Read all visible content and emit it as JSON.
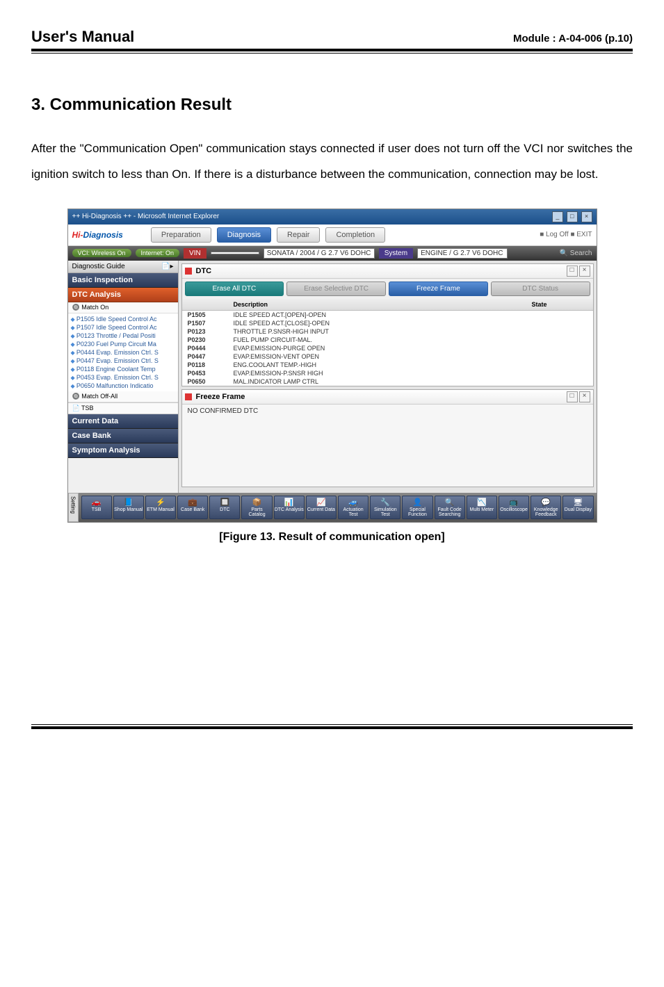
{
  "header": {
    "title": "User's Manual",
    "module": "Module : A-04-006 (p.10)"
  },
  "section": {
    "title": "3. Communication Result"
  },
  "body": "After the \"Communication Open\" communication stays connected if user does not turn off the VCI nor switches the ignition switch to less than On. If there is a disturbance between the communication, connection may be lost.",
  "caption": "[Figure 13. Result of communication open]",
  "window": {
    "title": "++ Hi-Diagnosis ++ - Microsoft Internet Explorer",
    "logo_hi": "Hi-",
    "logo_diag": "Diagnosis",
    "nav": {
      "prep": "Preparation",
      "diag": "Diagnosis",
      "repair": "Repair",
      "comp": "Completion"
    },
    "toplinks": "■ Log Off   ■ EXIT",
    "status": {
      "vci": "VCI: Wireless On",
      "net": "Internet: On"
    },
    "labels": {
      "vin": "VIN",
      "system": "System",
      "search": "🔍 Search"
    },
    "fields": {
      "vin": "",
      "model": "SONATA / 2004 / G 2.7 V6 DOHC",
      "system": "ENGINE / G 2.7 V6 DOHC"
    }
  },
  "sidebar": {
    "guide": "Diagnostic Guide",
    "basic": "Basic Inspection",
    "dtc": "DTC Analysis",
    "match_on": "Match On",
    "items": [
      "P1505 Idle Speed Control Ac",
      "P1507 Idle Speed Control Ac",
      "P0123 Throttle / Pedal Positi",
      "P0230 Fuel Pump Circuit Ma",
      "P0444 Evap. Emission Ctrl. S",
      "P0447 Evap. Emission Ctrl. S",
      "P0118 Engine Coolant Temp",
      "P0453 Evap. Emission Ctrl. S",
      "P0650 Malfunction Indicatio"
    ],
    "match_off": "Match Off-All",
    "tsb": "TSB",
    "current": "Current Data",
    "case": "Case Bank",
    "symptom": "Symptom Analysis"
  },
  "dtc_panel": {
    "title": "DTC",
    "btns": {
      "erase": "Erase All DTC",
      "sel": "Erase Selective DTC",
      "freeze": "Freeze Frame",
      "status": "DTC Status"
    },
    "cols": {
      "desc": "Description",
      "state": "State"
    },
    "rows": [
      [
        "P1505",
        "IDLE SPEED ACT.[OPEN]-OPEN"
      ],
      [
        "P1507",
        "IDLE SPEED ACT.[CLOSE]-OPEN"
      ],
      [
        "P0123",
        "THROTTLE P.SNSR-HIGH INPUT"
      ],
      [
        "P0230",
        "FUEL PUMP CIRCUIT-MAL."
      ],
      [
        "P0444",
        "EVAP.EMISSION-PURGE OPEN"
      ],
      [
        "P0447",
        "EVAP.EMISSION-VENT OPEN"
      ],
      [
        "P0118",
        "ENG.COOLANT TEMP.-HIGH"
      ],
      [
        "P0453",
        "EVAP.EMISSION-P.SNSR HIGH"
      ],
      [
        "P0650",
        "MAL.INDICATOR LAMP CTRL"
      ]
    ]
  },
  "ff_panel": {
    "title": "Freeze Frame",
    "msg": "NO CONFIRMED DTC"
  },
  "bottombar": {
    "setting": "Setting",
    "items": [
      {
        "i": "🚗",
        "t": "TSB"
      },
      {
        "i": "📘",
        "t": "Shop Manual"
      },
      {
        "i": "⚡",
        "t": "ETM Manual"
      },
      {
        "i": "💼",
        "t": "Case Bank"
      },
      {
        "i": "🔲",
        "t": "DTC"
      },
      {
        "i": "📦",
        "t": "Parts Catalog"
      },
      {
        "i": "📊",
        "t": "DTC Analysis"
      },
      {
        "i": "📈",
        "t": "Current Data"
      },
      {
        "i": "🚙",
        "t": "Actuation Test"
      },
      {
        "i": "🔧",
        "t": "Simulation Test"
      },
      {
        "i": "👤",
        "t": "Special Function"
      },
      {
        "i": "🔍",
        "t": "Fault Code Searching"
      },
      {
        "i": "📉",
        "t": "Multi Meter"
      },
      {
        "i": "📺",
        "t": "Oscilloscope"
      },
      {
        "i": "💬",
        "t": "Knowledge Feedback"
      },
      {
        "i": "🖥",
        "t": "Dual Display"
      }
    ]
  }
}
